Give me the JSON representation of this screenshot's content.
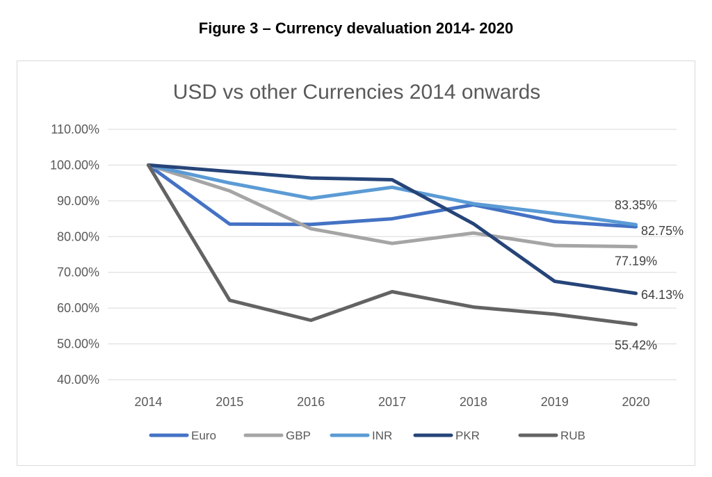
{
  "figure_caption": "Figure 3 – Currency devaluation 2014- 2020",
  "chart_data": {
    "type": "line",
    "title": "USD vs other Currencies 2014 onwards",
    "xlabel": "",
    "ylabel": "",
    "x": [
      "2014",
      "2015",
      "2016",
      "2017",
      "2018",
      "2019",
      "2020"
    ],
    "ylim": [
      40,
      110
    ],
    "yticks": [
      40,
      50,
      60,
      70,
      80,
      90,
      100,
      110
    ],
    "ytick_labels": [
      "40.00%",
      "50.00%",
      "60.00%",
      "70.00%",
      "80.00%",
      "90.00%",
      "100.00%",
      "110.00%"
    ],
    "grid": true,
    "legend_position": "bottom",
    "series": [
      {
        "name": "Euro",
        "color": "#4472c4",
        "values": [
          100,
          83.5,
          83.4,
          85.0,
          88.9,
          84.2,
          82.75
        ]
      },
      {
        "name": "GBP",
        "color": "#a5a5a5",
        "values": [
          100,
          92.8,
          82.2,
          78.1,
          81.0,
          77.5,
          77.19
        ]
      },
      {
        "name": "INR",
        "color": "#5b9bd5",
        "values": [
          100,
          95.0,
          90.7,
          93.8,
          89.2,
          86.5,
          83.35
        ]
      },
      {
        "name": "PKR",
        "color": "#264478",
        "values": [
          100,
          98.2,
          96.4,
          95.9,
          83.6,
          67.5,
          64.13
        ]
      },
      {
        "name": "RUB",
        "color": "#636363",
        "values": [
          100,
          62.2,
          56.6,
          64.6,
          60.3,
          58.3,
          55.42
        ]
      }
    ],
    "data_labels": [
      {
        "series": "INR",
        "x": "2020",
        "text": "83.35%"
      },
      {
        "series": "Euro",
        "x": "2020",
        "text": "82.75%"
      },
      {
        "series": "GBP",
        "x": "2020",
        "text": "77.19%"
      },
      {
        "series": "PKR",
        "x": "2020",
        "text": "64.13%"
      },
      {
        "series": "RUB",
        "x": "2020",
        "text": "55.42%"
      }
    ]
  }
}
